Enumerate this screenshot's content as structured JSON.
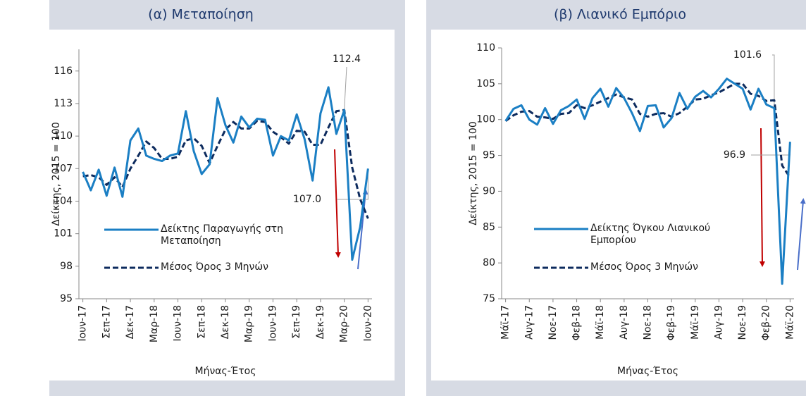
{
  "chart_data": [
    {
      "type": "line",
      "title": "(α) Μεταποίηση",
      "ylabel": "Δείκτης, 2015 = 100",
      "xlabel": "Μήνας-Έτος",
      "categories": [
        "Ιουν-17",
        null,
        null,
        "Σεπ-17",
        null,
        null,
        "Δεκ-17",
        null,
        null,
        "Μαρ-18",
        null,
        null,
        "Ιουν-18",
        null,
        null,
        "Σεπ-18",
        null,
        null,
        "Δεκ-18",
        null,
        null,
        "Μαρ-19",
        null,
        null,
        "Ιουν-19",
        null,
        null,
        "Σεπ-19",
        null,
        null,
        "Δεκ-19",
        null,
        null,
        "Μαρ-20",
        null,
        null,
        "Ιουν-20"
      ],
      "series": [
        {
          "name": "Δείκτης Παραγωγής στη Μεταποίηση",
          "color": "#1b7fc4",
          "style": "solid",
          "values": [
            106.7,
            105.0,
            106.9,
            104.5,
            107.1,
            104.4,
            109.6,
            110.7,
            108.2,
            107.9,
            107.7,
            108.2,
            108.4,
            112.3,
            108.6,
            106.5,
            107.4,
            113.5,
            111.0,
            109.4,
            111.8,
            110.8,
            111.6,
            111.5,
            108.2,
            110.0,
            109.6,
            112.0,
            109.7,
            105.9,
            112.1,
            114.5,
            110.2,
            112.4,
            98.6,
            101.6,
            107.0
          ]
        },
        {
          "name": "Μέσος Όρος 3 Μηνών",
          "color": "#0d2b5e",
          "style": "dashed",
          "values": [
            106.3,
            106.4,
            106.2,
            105.5,
            106.2,
            105.3,
            107.0,
            108.2,
            109.5,
            108.9,
            107.9,
            107.9,
            108.1,
            109.6,
            109.8,
            109.1,
            107.5,
            109.1,
            110.6,
            111.3,
            110.7,
            110.7,
            111.4,
            111.3,
            110.4,
            109.9,
            109.3,
            110.5,
            110.4,
            109.2,
            109.2,
            110.8,
            112.3,
            112.4,
            107.1,
            104.2,
            102.4
          ]
        }
      ],
      "annotations": [
        "112.4",
        "107.0"
      ],
      "ylim": [
        95,
        118
      ],
      "yticks": [
        95,
        98,
        101,
        104,
        107,
        110,
        113,
        116
      ],
      "grid": false
    },
    {
      "type": "line",
      "title": "(β) Λιανικό Εμπόριο",
      "ylabel": "Δείκτης, 2015 = 100",
      "xlabel": "Μήνας-Έτος",
      "categories": [
        "Μάϊ-17",
        null,
        null,
        "Αυγ-17",
        null,
        null,
        "Νοε-17",
        null,
        null,
        "Φεβ-18",
        null,
        null,
        "Μάϊ-18",
        null,
        null,
        "Αυγ-18",
        null,
        null,
        "Νοε-18",
        null,
        null,
        "Φεβ-19",
        null,
        null,
        "Μάϊ-19",
        null,
        null,
        "Αυγ-19",
        null,
        null,
        "Νοε-19",
        null,
        null,
        "Φεβ-20",
        null,
        null,
        "Μάϊ-20"
      ],
      "series": [
        {
          "name": "Δείκτης Όγκου Λιανικού Εμπορίου",
          "color": "#1b7fc4",
          "style": "solid",
          "values": [
            99.8,
            101.5,
            102.0,
            100.0,
            99.3,
            101.6,
            99.4,
            101.3,
            101.9,
            102.8,
            100.1,
            103.0,
            104.3,
            101.8,
            104.4,
            103.0,
            100.9,
            98.4,
            101.9,
            102.0,
            98.9,
            100.2,
            103.7,
            101.5,
            103.2,
            104.0,
            103.1,
            104.3,
            105.7,
            105.0,
            104.3,
            101.4,
            104.3,
            102.1,
            101.6,
            77.1,
            96.9
          ]
        },
        {
          "name": "Μέσος Όρος 3 Μηνών",
          "color": "#0d2b5e",
          "style": "dashed",
          "values": [
            99.8,
            100.6,
            101.1,
            101.2,
            100.4,
            100.3,
            100.1,
            100.8,
            100.9,
            102.0,
            101.6,
            102.0,
            102.5,
            103.0,
            103.5,
            103.1,
            102.8,
            100.8,
            100.4,
            100.8,
            100.9,
            100.4,
            100.9,
            101.8,
            102.8,
            102.9,
            103.4,
            103.8,
            104.4,
            105.0,
            105.0,
            103.6,
            103.3,
            102.6,
            102.7,
            93.6,
            91.9
          ]
        }
      ],
      "annotations": [
        "101.6",
        "96.9"
      ],
      "ylim": [
        75,
        110
      ],
      "yticks": [
        75,
        80,
        85,
        90,
        95,
        100,
        105,
        110
      ],
      "grid": false
    }
  ]
}
